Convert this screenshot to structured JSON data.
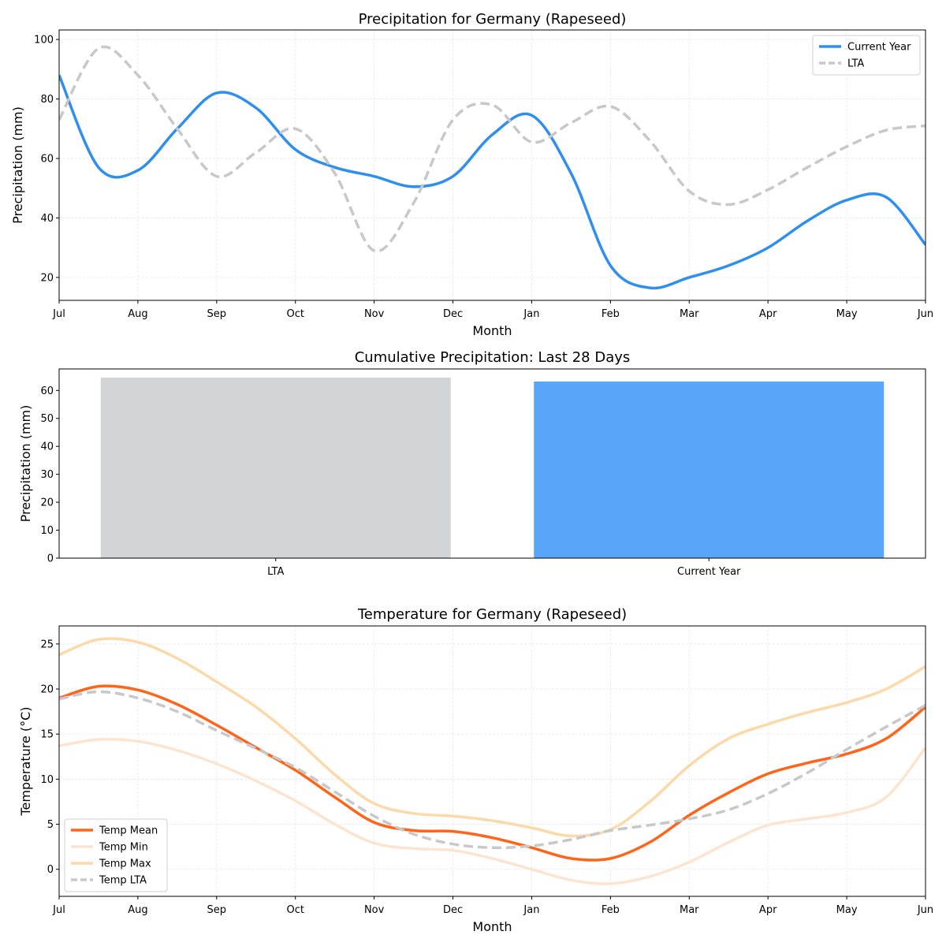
{
  "chart_data": [
    {
      "type": "line",
      "title": "Precipitation for Germany (Rapeseed)",
      "xlabel": "Month",
      "ylabel": "Precipitation (mm)",
      "x_ticks": [
        "Jul",
        "Aug",
        "Sep",
        "Oct",
        "Nov",
        "Dec",
        "Jan",
        "Feb",
        "Mar",
        "Apr",
        "May",
        "Jun"
      ],
      "x_step": 0.5,
      "ylim": [
        12.3,
        103.2
      ],
      "y_ticks": [
        20,
        40,
        60,
        80,
        100
      ],
      "grid": true,
      "legend": "top-right",
      "series": [
        {
          "name": "Current Year",
          "color": "#2e8ff0",
          "dash": false,
          "values": [
            88,
            57,
            56,
            70,
            82,
            77,
            63,
            57,
            54,
            50.5,
            54,
            68,
            74.5,
            55,
            24,
            16.5,
            20,
            24,
            30,
            39,
            46,
            47,
            31
          ]
        },
        {
          "name": "LTA",
          "color": "#c6c8ca",
          "dash": true,
          "values": [
            73,
            97,
            88,
            70,
            54,
            62,
            70,
            55,
            29,
            45,
            73,
            78,
            65.5,
            72,
            77.5,
            66,
            49,
            44.5,
            49.5,
            57,
            64,
            69.5,
            71
          ]
        }
      ]
    },
    {
      "type": "bar",
      "title": "Cumulative Precipitation: Last 28 Days",
      "xlabel": "",
      "ylabel": "Precipitation (mm)",
      "categories": [
        "LTA",
        "Current Year"
      ],
      "values": [
        64.6,
        63.2
      ],
      "colors": [
        "#d1d5d8",
        "#58a6fa"
      ],
      "ylim": [
        0,
        67.7
      ],
      "y_ticks": [
        0,
        10,
        20,
        30,
        40,
        50,
        60
      ]
    },
    {
      "type": "line",
      "title": "Temperature for Germany (Rapeseed)",
      "xlabel": "Month",
      "ylabel": "Temperature (°C)",
      "x_ticks": [
        "Jul",
        "Aug",
        "Sep",
        "Oct",
        "Nov",
        "Dec",
        "Jan",
        "Feb",
        "Mar",
        "Apr",
        "May",
        "Jun"
      ],
      "x_step": 0.5,
      "ylim": [
        -3,
        27
      ],
      "y_ticks": [
        0,
        5,
        10,
        15,
        20,
        25
      ],
      "grid": true,
      "legend": "lower-left",
      "series": [
        {
          "name": "Temp Mean",
          "color": "#ff6418",
          "dash": false,
          "values": [
            19,
            20.3,
            19.9,
            18.3,
            16,
            13.5,
            11,
            8,
            5.2,
            4.3,
            4.2,
            3.5,
            2.4,
            1.2,
            1.2,
            3,
            6,
            8.5,
            10.6,
            11.8,
            12.8,
            14.5,
            18
          ]
        },
        {
          "name": "Temp Min",
          "color": "#fde4cf",
          "dash": false,
          "values": [
            13.7,
            14.4,
            14.2,
            13.2,
            11.7,
            9.8,
            7.6,
            5,
            2.9,
            2.3,
            2.1,
            1.2,
            0,
            -1.2,
            -1.6,
            -0.8,
            0.8,
            3,
            4.9,
            5.6,
            6.3,
            8,
            13.5
          ]
        },
        {
          "name": "Temp Max",
          "color": "#fcd9a8",
          "dash": false,
          "values": [
            23.8,
            25.5,
            25.2,
            23.4,
            20.8,
            18,
            14.5,
            10.5,
            7.3,
            6.2,
            5.9,
            5.4,
            4.6,
            3.7,
            4.4,
            7.5,
            11.5,
            14.5,
            16.1,
            17.4,
            18.5,
            20,
            22.5
          ]
        },
        {
          "name": "Temp LTA",
          "color": "#c6c8ca",
          "dash": true,
          "values": [
            18.9,
            19.7,
            19,
            17.5,
            15.4,
            13.4,
            11.3,
            8.6,
            5.9,
            3.9,
            2.8,
            2.4,
            2.6,
            3.3,
            4.3,
            4.9,
            5.6,
            6.6,
            8.4,
            10.7,
            13.3,
            15.8,
            18.2
          ]
        }
      ]
    }
  ]
}
